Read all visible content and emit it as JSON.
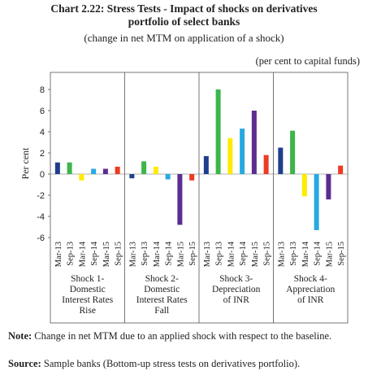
{
  "chart_data": {
    "type": "bar",
    "title_line1": "Chart 2.22: Stress Tests - Impact of shocks on derivatives",
    "title_line2": "portfolio of select banks",
    "subtitle": "(change in net MTM on application of a shock)",
    "unit_note": "(per cent to capital funds)",
    "ylabel": "Per cent",
    "ylim": [
      -6,
      8
    ],
    "yticks": [
      -6,
      -4,
      -2,
      0,
      2,
      4,
      6,
      8
    ],
    "periods": [
      "Mar-13",
      "Sep-13",
      "Mar-14",
      "Sep-14",
      "Mar-15",
      "Sep-15"
    ],
    "period_colors": [
      "#1f3f8c",
      "#3cb54a",
      "#ffeb00",
      "#27a9e1",
      "#5c2d91",
      "#ee3a24"
    ],
    "groups": [
      {
        "label": [
          "Shock 1-",
          "Domestic",
          "Interest Rates",
          "Rise"
        ],
        "values": [
          1.1,
          1.1,
          -0.6,
          0.5,
          0.5,
          0.7
        ]
      },
      {
        "label": [
          "Shock 2-",
          "Domestic",
          "Interest Rates",
          "Fall"
        ],
        "values": [
          -0.4,
          1.2,
          0.7,
          -0.5,
          -4.8,
          -0.6
        ]
      },
      {
        "label": [
          "Shock 3-",
          "Depreciation",
          "of INR"
        ],
        "values": [
          1.7,
          8.0,
          3.4,
          4.3,
          6.0,
          1.8
        ]
      },
      {
        "label": [
          "Shock 4-",
          "Appreciation",
          "of INR"
        ],
        "values": [
          2.5,
          4.1,
          -2.1,
          -5.3,
          -2.4,
          0.8
        ]
      }
    ]
  },
  "footer": {
    "note_label": "Note:",
    "note_text": " Change in net MTM due to an applied shock with respect to the baseline.",
    "source_label": "Source:",
    "source_text": " Sample banks (Bottom-up stress tests on derivatives portfolio)."
  }
}
